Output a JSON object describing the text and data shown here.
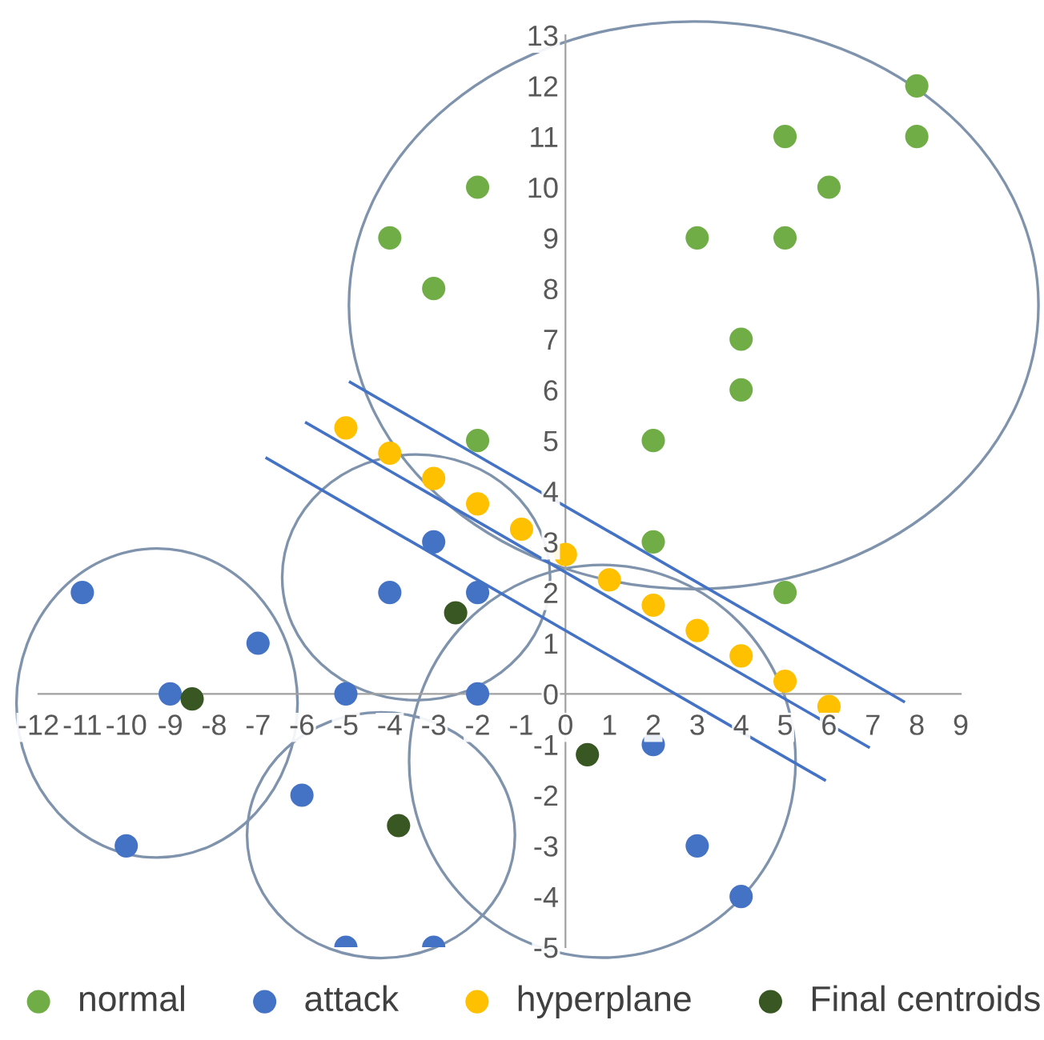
{
  "chart_data": {
    "type": "scatter",
    "xlim": [
      -12,
      9
    ],
    "ylim": [
      -5,
      13
    ],
    "xticks": [
      -12,
      -11,
      -10,
      -9,
      -8,
      -7,
      -6,
      -5,
      -4,
      -3,
      -2,
      -1,
      0,
      1,
      2,
      3,
      4,
      5,
      6,
      7,
      8,
      9
    ],
    "yticks": [
      -5,
      -4,
      -3,
      -2,
      -1,
      0,
      1,
      2,
      3,
      4,
      5,
      6,
      7,
      8,
      9,
      10,
      11,
      12,
      13
    ],
    "grid": false,
    "legend": "bottom",
    "marker": "circle",
    "series": [
      {
        "name": "normal",
        "color": "#70ad47",
        "x": [
          -4,
          -2,
          -3,
          -2,
          2,
          3,
          5,
          5,
          6,
          8,
          8,
          4,
          4,
          2,
          5
        ],
        "values": [
          9,
          10,
          8,
          5,
          5,
          9,
          9,
          11,
          10,
          12,
          11,
          7,
          6,
          3,
          2
        ]
      },
      {
        "name": "attack",
        "color": "#4472c4",
        "x": [
          -11,
          -7,
          -9,
          -10,
          -4,
          -3,
          -2,
          -5,
          -2,
          -6,
          -5,
          -3,
          2,
          3,
          4
        ],
        "values": [
          2,
          1,
          0,
          -3,
          2,
          3,
          2,
          0,
          0,
          -2,
          -5,
          -5,
          -1,
          -3,
          -4
        ]
      },
      {
        "name": "hyperplane",
        "color": "#ffc000",
        "x": [
          -5,
          -4,
          -3,
          -2,
          -1,
          0,
          1,
          2,
          3,
          4,
          5,
          6
        ],
        "values": [
          5.25,
          4.75,
          4.25,
          3.75,
          3.25,
          2.75,
          2.25,
          1.75,
          1.25,
          0.75,
          0.25,
          -0.25
        ]
      },
      {
        "name": "Final centroids",
        "color": "#385723",
        "x": [
          -8.5,
          -2.5,
          -3.8,
          0.5
        ],
        "values": [
          -0.1,
          1.6,
          -2.6,
          -1.2
        ]
      },
      {
        "type": "line",
        "color": "#4472c4",
        "marker": "none",
        "x": [
          -4.9,
          7.7
        ],
        "values": [
          6.15,
          -0.15
        ]
      },
      {
        "type": "line",
        "color": "#4472c4",
        "marker": "none",
        "x": [
          -5.9,
          6.9
        ],
        "values": [
          5.35,
          -1.05
        ]
      },
      {
        "type": "line",
        "color": "#4472c4",
        "marker": "none",
        "x": [
          -6.8,
          5.9
        ],
        "values": [
          4.65,
          -1.7
        ]
      }
    ]
  }
}
